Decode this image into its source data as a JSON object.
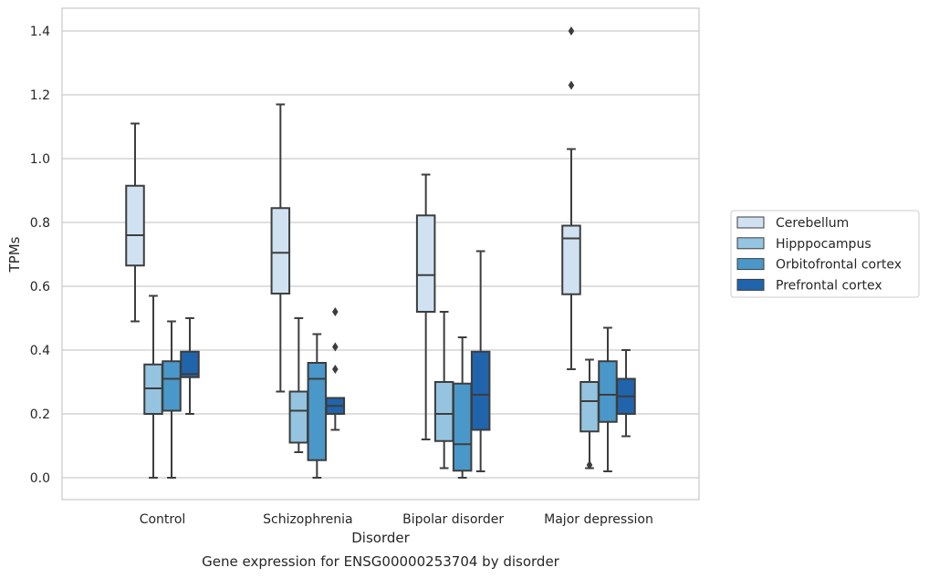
{
  "chart_data": {
    "type": "box",
    "title": "Gene expression for ENSG00000253704 by disorder",
    "xlabel": "Disorder",
    "ylabel": "TPMs",
    "ylim": [
      -0.07,
      1.47
    ],
    "yticks": [
      0.0,
      0.2,
      0.4,
      0.6,
      0.8,
      1.0,
      1.2,
      1.4
    ],
    "ytick_labels": [
      "0.0",
      "0.2",
      "0.4",
      "0.6",
      "0.8",
      "1.0",
      "1.2",
      "1.4"
    ],
    "grid": true,
    "legend_position": "right",
    "categories": [
      "Control",
      "Schizophrenia",
      "Bipolar disorder",
      "Major depression"
    ],
    "series": [
      {
        "name": "Cerebellum",
        "color": "#d0e1f2",
        "boxes": [
          {
            "whislo": 0.49,
            "q1": 0.665,
            "med": 0.76,
            "q3": 0.915,
            "whishi": 1.11,
            "fliers": []
          },
          {
            "whislo": 0.27,
            "q1": 0.577,
            "med": 0.705,
            "q3": 0.845,
            "whishi": 1.17,
            "fliers": []
          },
          {
            "whislo": 0.12,
            "q1": 0.52,
            "med": 0.635,
            "q3": 0.822,
            "whishi": 0.95,
            "fliers": []
          },
          {
            "whislo": 0.34,
            "q1": 0.575,
            "med": 0.75,
            "q3": 0.79,
            "whishi": 1.03,
            "fliers": [
              1.4,
              1.23
            ]
          }
        ]
      },
      {
        "name": "Hipppocampus",
        "color": "#94c4df",
        "boxes": [
          {
            "whislo": 0.0,
            "q1": 0.2,
            "med": 0.28,
            "q3": 0.355,
            "whishi": 0.57,
            "fliers": []
          },
          {
            "whislo": 0.08,
            "q1": 0.11,
            "med": 0.21,
            "q3": 0.27,
            "whishi": 0.5,
            "fliers": []
          },
          {
            "whislo": 0.03,
            "q1": 0.115,
            "med": 0.2,
            "q3": 0.3,
            "whishi": 0.52,
            "fliers": []
          },
          {
            "whislo": 0.03,
            "q1": 0.145,
            "med": 0.24,
            "q3": 0.3,
            "whishi": 0.37,
            "fliers": [
              0.04
            ]
          }
        ]
      },
      {
        "name": "Orbitofrontal cortex",
        "color": "#4a98c9",
        "boxes": [
          {
            "whislo": 0.0,
            "q1": 0.21,
            "med": 0.31,
            "q3": 0.365,
            "whishi": 0.49,
            "fliers": []
          },
          {
            "whislo": 0.0,
            "q1": 0.055,
            "med": 0.31,
            "q3": 0.36,
            "whishi": 0.45,
            "fliers": []
          },
          {
            "whislo": 0.0,
            "q1": 0.022,
            "med": 0.105,
            "q3": 0.295,
            "whishi": 0.44,
            "fliers": []
          },
          {
            "whislo": 0.02,
            "q1": 0.175,
            "med": 0.26,
            "q3": 0.365,
            "whishi": 0.47,
            "fliers": []
          }
        ]
      },
      {
        "name": "Prefrontal cortex",
        "color": "#2064ab",
        "boxes": [
          {
            "whislo": 0.2,
            "q1": 0.315,
            "med": 0.325,
            "q3": 0.395,
            "whishi": 0.5,
            "fliers": []
          },
          {
            "whislo": 0.15,
            "q1": 0.2,
            "med": 0.225,
            "q3": 0.25,
            "whishi": 0.25,
            "fliers": [
              0.52,
              0.41,
              0.34
            ]
          },
          {
            "whislo": 0.02,
            "q1": 0.15,
            "med": 0.26,
            "q3": 0.395,
            "whishi": 0.71,
            "fliers": []
          },
          {
            "whislo": 0.13,
            "q1": 0.2,
            "med": 0.255,
            "q3": 0.31,
            "whishi": 0.4,
            "fliers": []
          }
        ]
      }
    ]
  }
}
